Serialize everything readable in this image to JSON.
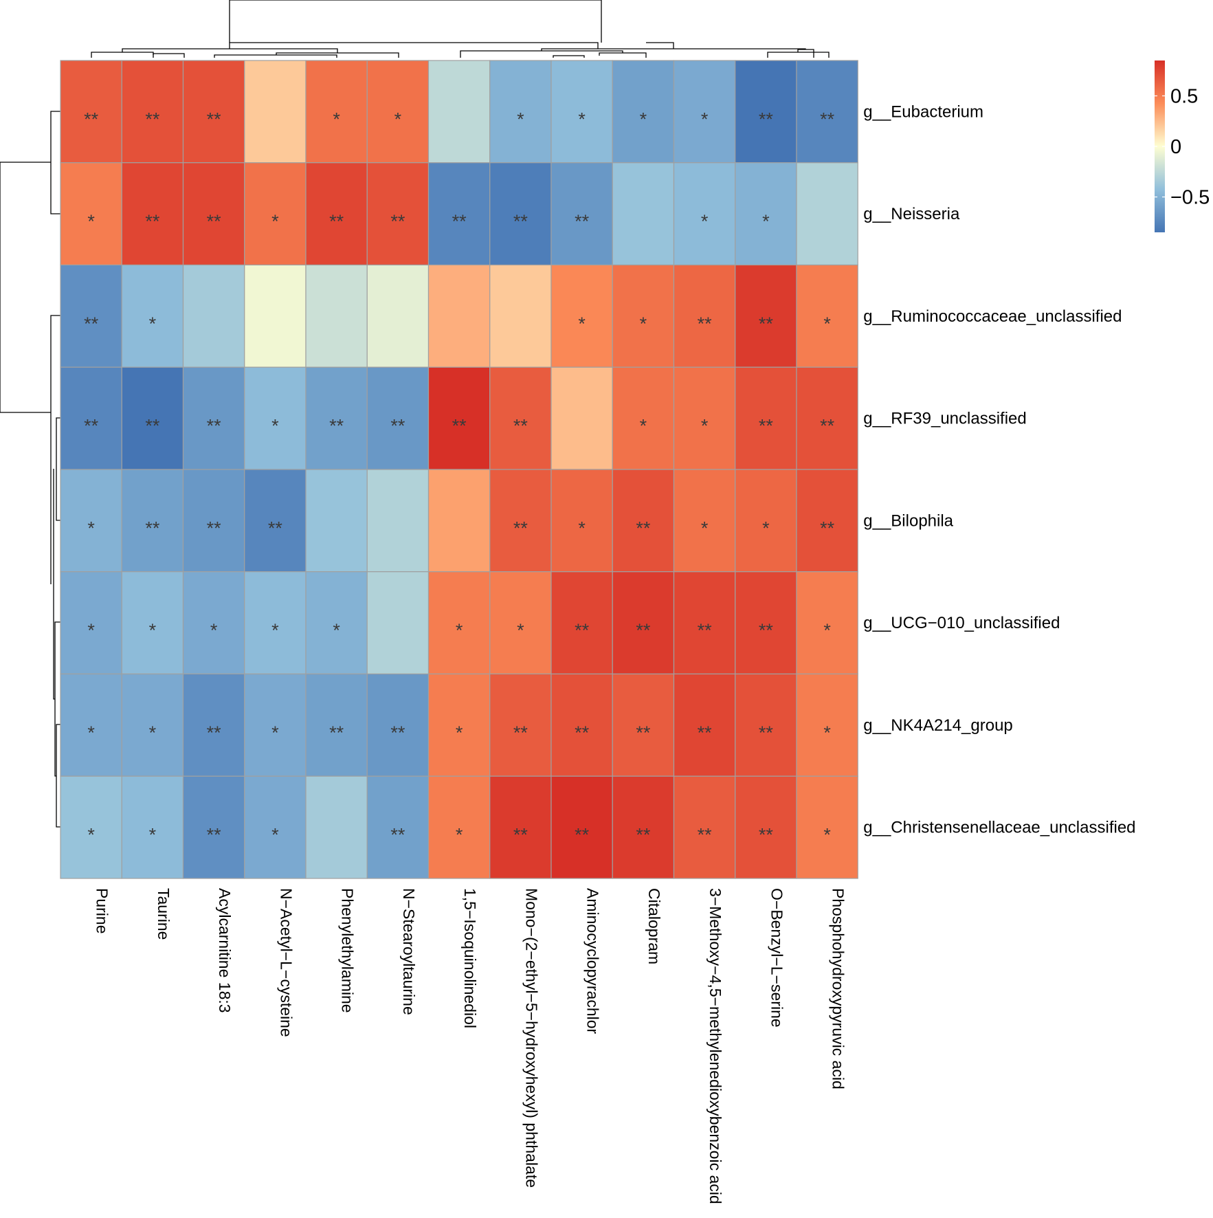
{
  "chart_data": {
    "type": "heatmap",
    "title": "",
    "xlabel": "",
    "ylabel": "",
    "columns": [
      "Purine",
      "Taurine",
      "Acylcarnitine 18:3",
      "N−Acetyl−L−cysteine",
      "Phenylethylamine",
      "N−Stearoyltaurine",
      "1,5−Isoquinolinediol",
      "Mono−(2−ethyl−5−hydroxyhexyl) phthalate",
      "Aminocyclopyrachlor",
      "Citalopram",
      "3−Methoxy−4,5−methylenedioxybenzoic acid",
      "O−Benzyl−L−serine",
      "Phosphohydroxypyruvic acid"
    ],
    "rows": [
      "g__Eubacterium",
      "g__Neisseria",
      "g__Ruminococcaceae_unclassified",
      "g__RF39_unclassified",
      "g__Bilophila",
      "g__UCG−010_unclassified",
      "g__NK4A214_group",
      "g__Christensenellaceae_unclassified"
    ],
    "values": [
      [
        0.65,
        0.7,
        0.7,
        0.2,
        0.55,
        0.55,
        -0.25,
        -0.5,
        -0.45,
        -0.6,
        -0.55,
        -0.85,
        -0.75
      ],
      [
        0.5,
        0.75,
        0.75,
        0.55,
        0.75,
        0.7,
        -0.75,
        -0.8,
        -0.65,
        -0.4,
        -0.45,
        -0.5,
        -0.3
      ],
      [
        -0.7,
        -0.45,
        -0.35,
        -0.05,
        -0.2,
        -0.1,
        0.3,
        0.2,
        0.45,
        0.55,
        0.6,
        0.8,
        0.5
      ],
      [
        -0.75,
        -0.85,
        -0.65,
        -0.45,
        -0.6,
        -0.65,
        0.85,
        0.65,
        0.25,
        0.55,
        0.55,
        0.7,
        0.7
      ],
      [
        -0.5,
        -0.6,
        -0.65,
        -0.75,
        -0.4,
        -0.3,
        0.35,
        0.65,
        0.6,
        0.7,
        0.55,
        0.6,
        0.7
      ],
      [
        -0.55,
        -0.45,
        -0.55,
        -0.45,
        -0.5,
        -0.3,
        0.5,
        0.5,
        0.75,
        0.8,
        0.75,
        0.75,
        0.5
      ],
      [
        -0.55,
        -0.55,
        -0.7,
        -0.55,
        -0.6,
        -0.65,
        0.5,
        0.65,
        0.7,
        0.65,
        0.75,
        0.7,
        0.5
      ],
      [
        -0.4,
        -0.45,
        -0.7,
        -0.55,
        -0.35,
        -0.6,
        0.5,
        0.8,
        0.85,
        0.8,
        0.65,
        0.7,
        0.5
      ]
    ],
    "significance": [
      [
        "**",
        "**",
        "**",
        "",
        "*",
        "*",
        "",
        "*",
        "*",
        "*",
        "*",
        "**",
        "**"
      ],
      [
        "*",
        "**",
        "**",
        "*",
        "**",
        "**",
        "**",
        "**",
        "**",
        "",
        "*",
        "*",
        ""
      ],
      [
        "**",
        "*",
        "",
        "",
        "",
        "",
        "",
        "",
        "*",
        "*",
        "**",
        "**",
        "*"
      ],
      [
        "**",
        "**",
        "**",
        "*",
        "**",
        "**",
        "**",
        "**",
        "",
        "*",
        "*",
        "**",
        "**"
      ],
      [
        "*",
        "**",
        "**",
        "**",
        "",
        "",
        "",
        "**",
        "*",
        "**",
        "*",
        "*",
        "**"
      ],
      [
        "*",
        "*",
        "*",
        "*",
        "*",
        "",
        "*",
        "*",
        "**",
        "**",
        "**",
        "**",
        "*"
      ],
      [
        "*",
        "*",
        "**",
        "*",
        "**",
        "**",
        "*",
        "**",
        "**",
        "**",
        "**",
        "**",
        "*"
      ],
      [
        "*",
        "*",
        "**",
        "*",
        "",
        "**",
        "*",
        "**",
        "**",
        "**",
        "**",
        "**",
        "*"
      ]
    ],
    "colorscale": [
      "#4575b4",
      "#91bfdb",
      "#fefed2",
      "#fc8d59",
      "#d73027"
    ],
    "range": [
      -0.85,
      0.85
    ],
    "legend_ticks": [
      {
        "value": 0.5,
        "label": "0.5"
      },
      {
        "value": 0,
        "label": "0"
      },
      {
        "value": -0.5,
        "label": "−0.5"
      }
    ],
    "cell_border_color": "#a0a0a0",
    "grid": true,
    "legend_position": "top-right"
  }
}
